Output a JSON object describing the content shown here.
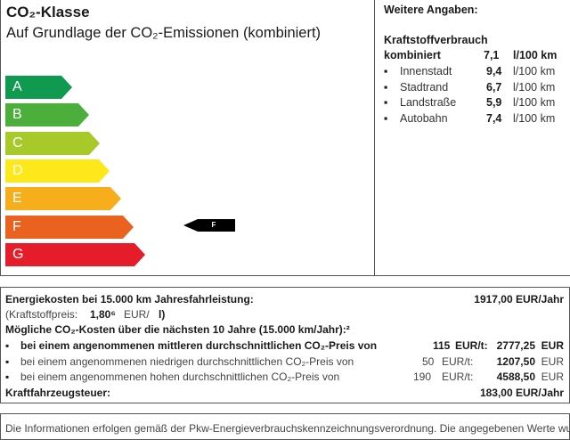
{
  "co2_class": {
    "title": "CO₂-Klasse",
    "subtitle": "Auf Grundlage der CO₂-Emissionen (kombiniert)",
    "classes": [
      {
        "label": "A",
        "color": "#0f9a4f"
      },
      {
        "label": "B",
        "color": "#4caf3c"
      },
      {
        "label": "C",
        "color": "#a8c92a"
      },
      {
        "label": "D",
        "color": "#fde81a"
      },
      {
        "label": "E",
        "color": "#f7ae1c"
      },
      {
        "label": "F",
        "color": "#ea6220"
      },
      {
        "label": "G",
        "color": "#e51d2a"
      }
    ],
    "current_class": "F"
  },
  "further": {
    "title": "Weitere Angaben:",
    "consumption_heading": "Kraftstoffverbrauch",
    "combined": {
      "label": "kombiniert",
      "value": "7,1",
      "unit": "l/100 km"
    },
    "items": [
      {
        "label": "Innenstadt",
        "value": "9,4",
        "unit": "l/100 km"
      },
      {
        "label": "Stadtrand",
        "value": "6,7",
        "unit": "l/100 km"
      },
      {
        "label": "Landstraße",
        "value": "5,9",
        "unit": "l/100 km"
      },
      {
        "label": "Autobahn",
        "value": "7,4",
        "unit": "l/100 km"
      }
    ]
  },
  "costs": {
    "energy_label": "Energiekosten bei 15.000 km Jahresfahrleistung:",
    "energy_value": "1917,00 EUR/Jahr",
    "fuel_price_label": "(Kraftstoffpreis:",
    "fuel_price_value": "1,80⁶",
    "fuel_price_unit": "EUR/",
    "fuel_price_suffix": "l)",
    "co2_heading": "Mögliche CO₂-Kosten über die nächsten 10 Jahre (15.000 km/Jahr):²",
    "scenarios": [
      {
        "text": "bei einem angenommenen mittleren durchschnittlichen CO₂-Preis von",
        "price": "115",
        "unit": "EUR/t:",
        "value": "2777,25",
        "currency": "EUR"
      },
      {
        "text": "bei einem angenommenen niedrigen durchschnittlichen CO₂-Preis von",
        "price": "50",
        "unit": "EUR/t:",
        "value": "1207,50",
        "currency": "EUR"
      },
      {
        "text": "bei einem angenommenen hohen durchschnittlichen CO₂-Preis von",
        "price": "190",
        "unit": "EUR/t:",
        "value": "4588,50",
        "currency": "EUR"
      }
    ],
    "tax_label": "Kraftfahrzeugsteuer:",
    "tax_value": "183,00 EUR/Jahr"
  },
  "footer_text": "Die Informationen erfolgen gemäß der Pkw-Energieverbrauchskennzeichnungsverordnung. Die angegebenen Werte wurden"
}
